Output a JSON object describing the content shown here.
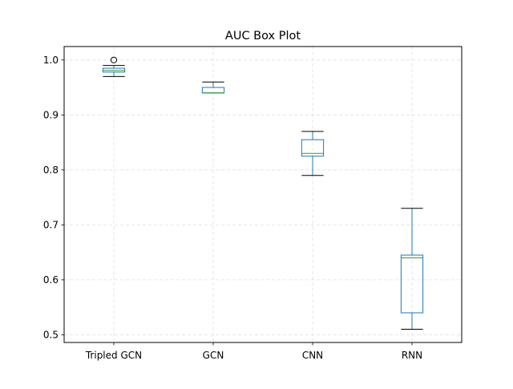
{
  "chart_data": {
    "type": "box",
    "title": "AUC Box Plot",
    "xlabel": "",
    "ylabel": "",
    "categories": [
      "Tripled GCN",
      "GCN",
      "CNN",
      "RNN"
    ],
    "boxes": [
      {
        "category": "Tripled GCN",
        "whisker_low": 0.97,
        "q1": 0.978,
        "median": 0.981,
        "q3": 0.985,
        "whisker_high": 0.99,
        "outliers": [
          1.0
        ]
      },
      {
        "category": "GCN",
        "whisker_low": 0.94,
        "q1": 0.94,
        "median": 0.94,
        "q3": 0.95,
        "whisker_high": 0.96,
        "outliers": []
      },
      {
        "category": "CNN",
        "whisker_low": 0.79,
        "q1": 0.825,
        "median": 0.83,
        "q3": 0.855,
        "whisker_high": 0.87,
        "outliers": []
      },
      {
        "category": "RNN",
        "whisker_low": 0.51,
        "q1": 0.54,
        "median": 0.64,
        "q3": 0.645,
        "whisker_high": 0.73,
        "outliers": []
      }
    ],
    "ylim": [
      0.486,
      1.0245
    ],
    "yticks": [
      0.5,
      0.6,
      0.7,
      0.8,
      0.9,
      1.0
    ],
    "ytick_labels": [
      "0.5",
      "0.6",
      "0.7",
      "0.8",
      "0.9",
      "1.0"
    ],
    "grid": true,
    "legend": "none",
    "colors": {
      "box": "#1f77b4",
      "median": "#2ca02c",
      "whisker_cap": "#000000",
      "grid": "#e0e0e0"
    }
  }
}
